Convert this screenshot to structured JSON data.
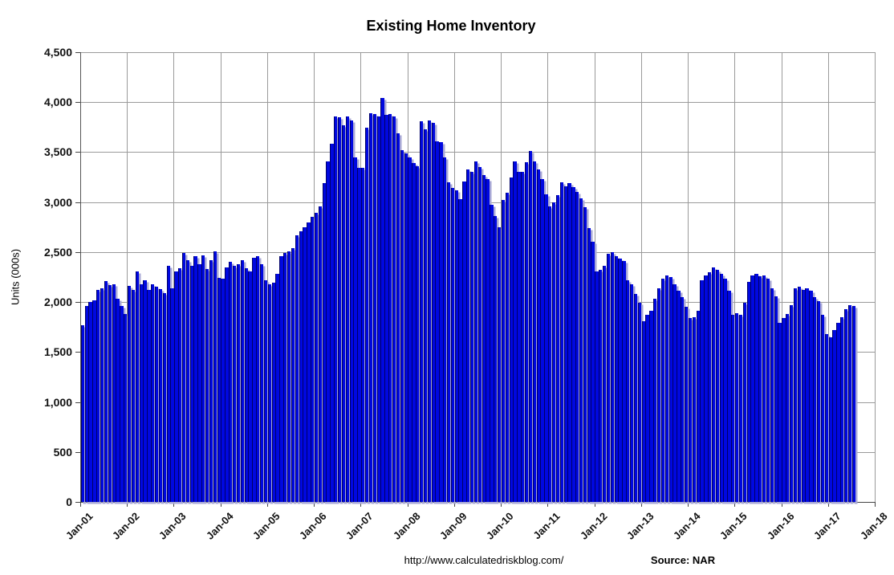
{
  "title": "Existing Home Inventory",
  "y_axis": {
    "label": "Units (000s)",
    "ticks": [
      "0",
      "500",
      "1,000",
      "1,500",
      "2,000",
      "2,500",
      "3,000",
      "3,500",
      "4,000",
      "4,500"
    ],
    "min": 0,
    "max": 4500,
    "step": 500
  },
  "x_axis": {
    "ticks": [
      "Jan-01",
      "Jan-02",
      "Jan-03",
      "Jan-04",
      "Jan-05",
      "Jan-06",
      "Jan-07",
      "Jan-08",
      "Jan-09",
      "Jan-10",
      "Jan-11",
      "Jan-12",
      "Jan-13",
      "Jan-14",
      "Jan-15",
      "Jan-16",
      "Jan-17",
      "Jan-18"
    ]
  },
  "footer": {
    "url": "http://www.calculatedriskblog.com/",
    "source": "Source: NAR"
  },
  "colors": {
    "bar": "#0008e0",
    "bar_edge": "#000066",
    "bar_shadow": "#a9a9d6",
    "gridline": "#9a9a9a"
  },
  "chart_data": {
    "type": "bar",
    "title": "Existing Home Inventory",
    "ylabel": "Units (000s)",
    "xlabel": "",
    "ylim": [
      0,
      4500
    ],
    "grid": true,
    "frequency": "monthly",
    "start_month": "Jan-2001",
    "end_month": "Jul-2017",
    "x_tick_labels_every": "12 months (Jan-01 through Jan-18)",
    "values": [
      1770,
      1960,
      2000,
      2020,
      2120,
      2140,
      2210,
      2170,
      2180,
      2030,
      1960,
      1880,
      2160,
      2120,
      2310,
      2180,
      2220,
      2120,
      2180,
      2150,
      2130,
      2090,
      2360,
      2140,
      2310,
      2340,
      2490,
      2420,
      2360,
      2460,
      2380,
      2470,
      2330,
      2420,
      2510,
      2240,
      2230,
      2350,
      2400,
      2360,
      2380,
      2420,
      2340,
      2310,
      2440,
      2460,
      2380,
      2220,
      2180,
      2190,
      2280,
      2460,
      2490,
      2510,
      2540,
      2670,
      2710,
      2750,
      2800,
      2850,
      2890,
      2960,
      3190,
      3410,
      3580,
      3860,
      3850,
      3770,
      3860,
      3820,
      3450,
      3340,
      3340,
      3745,
      3890,
      3880,
      3860,
      4040,
      3875,
      3880,
      3860,
      3690,
      3520,
      3490,
      3450,
      3390,
      3360,
      3805,
      3725,
      3820,
      3795,
      3610,
      3600,
      3450,
      3200,
      3140,
      3120,
      3030,
      3210,
      3330,
      3300,
      3410,
      3350,
      3270,
      3230,
      2970,
      2860,
      2750,
      3020,
      3090,
      3250,
      3410,
      3300,
      3300,
      3400,
      3510,
      3410,
      3330,
      3230,
      3080,
      2960,
      3000,
      3070,
      3200,
      3160,
      3190,
      3150,
      3100,
      3040,
      2950,
      2740,
      2600,
      2310,
      2320,
      2360,
      2480,
      2500,
      2460,
      2435,
      2410,
      2215,
      2175,
      2080,
      1990,
      1810,
      1870,
      1910,
      2030,
      2135,
      2230,
      2270,
      2250,
      2175,
      2110,
      2050,
      1950,
      1840,
      1845,
      1910,
      2215,
      2270,
      2295,
      2350,
      2320,
      2280,
      2230,
      2110,
      1870,
      1890,
      1870,
      1990,
      2200,
      2270,
      2280,
      2260,
      2270,
      2230,
      2140,
      2060,
      1790,
      1840,
      1880,
      1970,
      2135,
      2155,
      2120,
      2140,
      2110,
      2050,
      2010,
      1870,
      1680,
      1650,
      1720,
      1790,
      1850,
      1930,
      1970,
      1960
    ],
    "notable_points": {
      "series_start_Jan_2001": 1770,
      "peak_mid_2007": 4040,
      "trough_Jan_2017": 1650,
      "last_value_mid_2017": 1960
    }
  }
}
